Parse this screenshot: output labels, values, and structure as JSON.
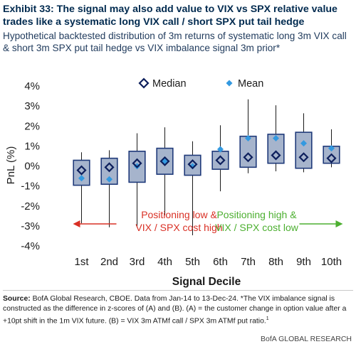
{
  "header": {
    "title": "Exhibit 33: The signal may also add value to VIX vs SPX relative value trades like a systematic long VIX call / short SPX put tail hedge",
    "subtitle": "Hypothetical backtested distribution of 3m returns of systematic long 3m VIX call & short 3m SPX put tail hedge vs VIX imbalance signal 3m prior*"
  },
  "chart_data": {
    "type": "box",
    "categories": [
      "1st",
      "2nd",
      "3rd",
      "4th",
      "5th",
      "6th",
      "7th",
      "8th",
      "9th",
      "10th"
    ],
    "xlabel": "Signal Decile",
    "ylabel": "PnL (%)",
    "ylim": [
      -4,
      4
    ],
    "yticks": [
      -4,
      -3,
      -2,
      -1,
      0,
      1,
      2,
      3,
      4
    ],
    "ytick_labels": [
      "-4%",
      "-3%",
      "-2%",
      "-1%",
      "0%",
      "1%",
      "2%",
      "3%",
      "4%"
    ],
    "legend": [
      "Median",
      "Mean"
    ],
    "legend_position": "top",
    "boxes": [
      {
        "whisker_low": -2.9,
        "q1": -1.0,
        "median": -0.25,
        "mean": -0.65,
        "q3": 0.25,
        "whisker_high": 0.65
      },
      {
        "whisker_low": -3.1,
        "q1": -0.95,
        "median": -0.1,
        "mean": -0.7,
        "q3": 0.35,
        "whisker_high": 0.75
      },
      {
        "whisker_low": -3.1,
        "q1": -0.85,
        "median": 0.1,
        "mean": -0.05,
        "q3": 0.7,
        "whisker_high": 1.6
      },
      {
        "whisker_low": -2.5,
        "q1": -0.45,
        "median": 0.2,
        "mean": 0.2,
        "q3": 0.85,
        "whisker_high": 1.9
      },
      {
        "whisker_low": -3.5,
        "q1": -0.5,
        "median": 0.05,
        "mean": -0.05,
        "q3": 0.5,
        "whisker_high": 1.2
      },
      {
        "whisker_low": -1.3,
        "q1": -0.2,
        "median": 0.25,
        "mean": 0.8,
        "q3": 0.7,
        "whisker_high": 2.0
      },
      {
        "whisker_low": -0.4,
        "q1": -0.1,
        "median": 0.4,
        "mean": 1.35,
        "q3": 1.45,
        "whisker_high": 3.3
      },
      {
        "whisker_low": -0.3,
        "q1": 0.1,
        "median": 0.5,
        "mean": 1.35,
        "q3": 1.55,
        "whisker_high": 3.0
      },
      {
        "whisker_low": -0.35,
        "q1": -0.15,
        "median": 0.4,
        "mean": 1.1,
        "q3": 1.65,
        "whisker_high": 2.6
      },
      {
        "whisker_low": -0.1,
        "q1": 0.1,
        "median": 0.35,
        "mean": 0.85,
        "q3": 0.95,
        "whisker_high": 1.8
      }
    ],
    "annotations": {
      "left": {
        "lines": [
          "Positioning low &",
          "VIX / SPX cost high"
        ],
        "color": "#d93025"
      },
      "right": {
        "lines": [
          "Positioning high &",
          "VIX / SPX cost low"
        ],
        "color": "#4caf30"
      }
    },
    "colors": {
      "box_fill": "#a6b4cc",
      "box_stroke": "#1f3a7a",
      "whisker": "#1a1a1a",
      "median_marker": "#0d1f5c",
      "mean_marker": "#3399e0",
      "text": "#1a1a1a"
    }
  },
  "footer": {
    "source_label": "Source:",
    "source_text": " BofA Global Research, CBOE. Data from Jan-14 to 13-Dec-24. *The VIX imbalance signal is constructed as the difference in z-scores of (A) and (B). (A) = the customer change in option value after a +10pt shift in the 1m VIX future. (B) = VIX 3m ATMf call / SPX 3m ATMf put ratio.",
    "footnote_marker": "1",
    "credit": "BofA GLOBAL RESEARCH"
  }
}
